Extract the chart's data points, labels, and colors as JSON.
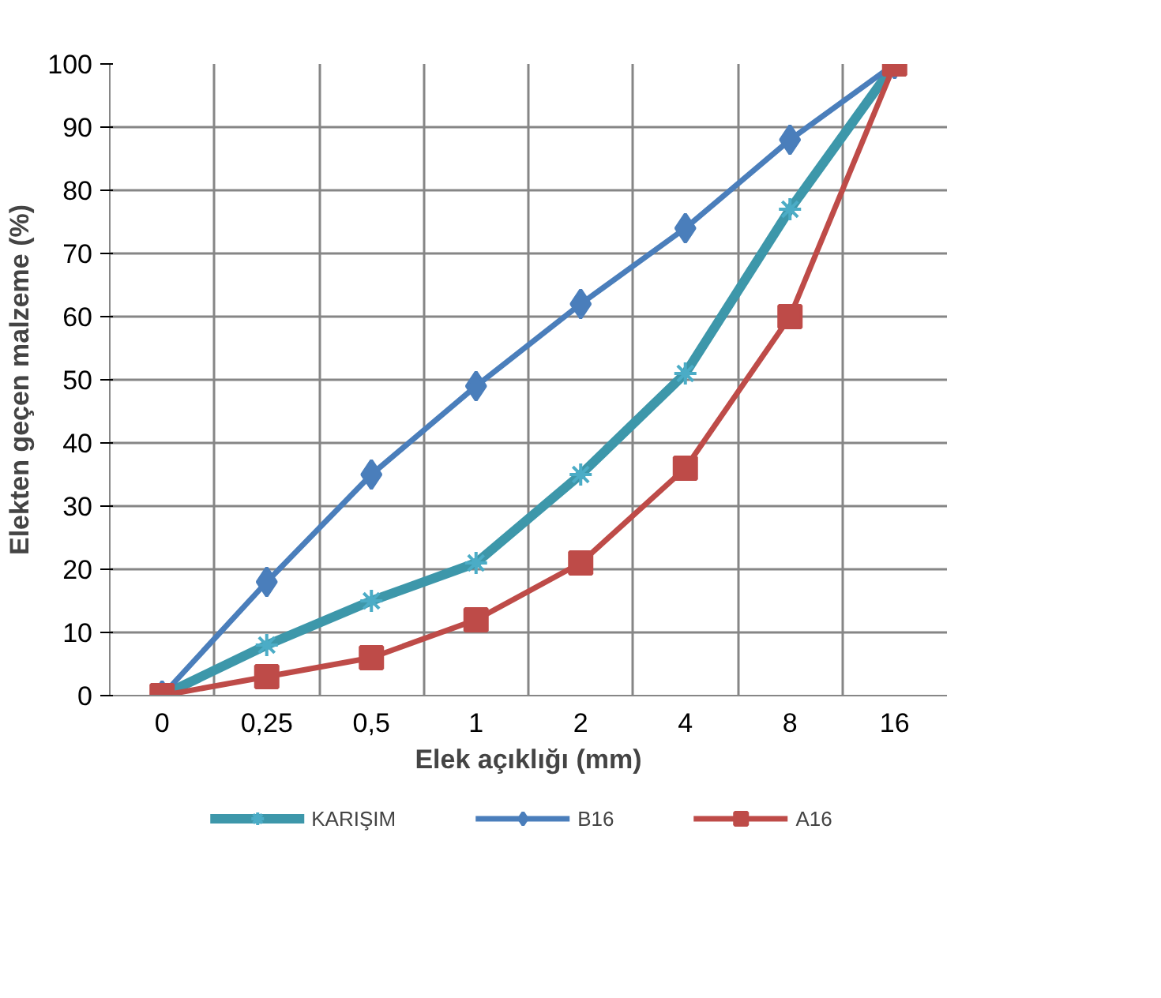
{
  "chart_data": {
    "type": "line",
    "xlabel": "Elek açıklığı (mm)",
    "ylabel": "Elekten geçen malzeme (%)",
    "categories": [
      "0",
      "0,25",
      "0,5",
      "1",
      "2",
      "4",
      "8",
      "16"
    ],
    "ylim": [
      0,
      100
    ],
    "yticks": [
      0,
      10,
      20,
      30,
      40,
      50,
      60,
      70,
      80,
      90,
      100
    ],
    "grid": true,
    "legend": "bottom",
    "series": [
      {
        "name": "KARIŞIM",
        "color": "#3d97aa",
        "marker": "cross",
        "values": [
          0,
          8,
          15,
          21,
          35,
          51,
          77,
          100
        ]
      },
      {
        "name": "B16",
        "color": "#4a7ebb",
        "marker": "diamond",
        "values": [
          0,
          18,
          35,
          49,
          62,
          74,
          88,
          100
        ]
      },
      {
        "name": "A16",
        "color": "#be4b48",
        "marker": "square",
        "values": [
          0,
          3,
          6,
          12,
          21,
          36,
          60,
          100
        ]
      }
    ]
  }
}
